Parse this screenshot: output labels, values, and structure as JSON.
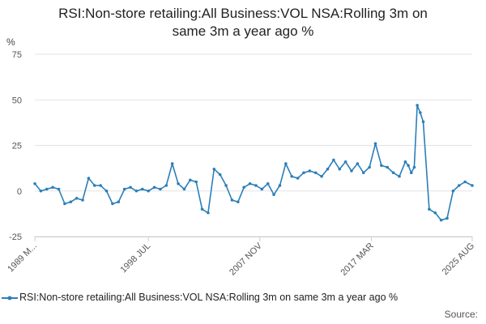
{
  "chart_data": {
    "type": "line",
    "title_lines": [
      "RSI:Non-store retailing:All Business:VOL NSA:Rolling 3m on",
      "same 3m a year ago %"
    ],
    "ylabel": "%",
    "xlabel": "",
    "ylim": [
      -25,
      75
    ],
    "yticks": [
      "75",
      "50",
      "25",
      "0",
      "-25"
    ],
    "xtick_labels": [
      "1989 M...",
      "1998 JUL",
      "2007 NOV",
      "2017 MAR",
      "2025 AUG"
    ],
    "grid": "horizontal",
    "legend_position": "bottom",
    "line_color": "#2b7fb8",
    "series": [
      {
        "name": "RSI:Non-store retailing:All Business:VOL NSA:Rolling 3m on same 3m a year ago %",
        "x": [
          1989.0,
          1989.5,
          1990.0,
          1990.5,
          1991.0,
          1991.5,
          1992.0,
          1992.5,
          1993.0,
          1993.5,
          1994.0,
          1994.5,
          1995.0,
          1995.5,
          1996.0,
          1996.5,
          1997.0,
          1997.5,
          1998.0,
          1998.5,
          1999.0,
          1999.5,
          2000.0,
          2000.5,
          2001.0,
          2001.5,
          2002.0,
          2002.5,
          2003.0,
          2003.5,
          2004.0,
          2004.5,
          2005.0,
          2005.5,
          2006.0,
          2006.5,
          2007.0,
          2007.5,
          2008.0,
          2008.5,
          2009.0,
          2009.5,
          2010.0,
          2010.5,
          2011.0,
          2011.5,
          2012.0,
          2012.5,
          2013.0,
          2013.5,
          2014.0,
          2014.5,
          2015.0,
          2015.5,
          2016.0,
          2016.5,
          2017.0,
          2017.5,
          2018.0,
          2018.5,
          2019.0,
          2019.5,
          2020.0,
          2020.25,
          2020.5,
          2020.75,
          2021.0,
          2021.25,
          2021.5,
          2022.0,
          2022.5,
          2023.0,
          2023.5,
          2024.0,
          2024.5,
          2025.0,
          2025.6
        ],
        "values": [
          4,
          0,
          1,
          2,
          1,
          -7,
          -6,
          -4,
          -5,
          7,
          3,
          3,
          0,
          -7,
          -6,
          1,
          2,
          0,
          1,
          0,
          2,
          1,
          3,
          15,
          4,
          1,
          6,
          5,
          -10,
          -12,
          12,
          9,
          3,
          -5,
          -6,
          2,
          4,
          3,
          1,
          4,
          -2,
          3,
          15,
          8,
          7,
          10,
          11,
          10,
          8,
          12,
          17,
          12,
          16,
          11,
          15,
          10,
          13,
          26,
          14,
          13,
          10,
          8,
          16,
          14,
          10,
          13,
          47,
          43,
          38,
          -10,
          -12,
          -16,
          -15,
          0,
          3,
          5,
          3
        ]
      }
    ]
  },
  "source_label": "Source:"
}
